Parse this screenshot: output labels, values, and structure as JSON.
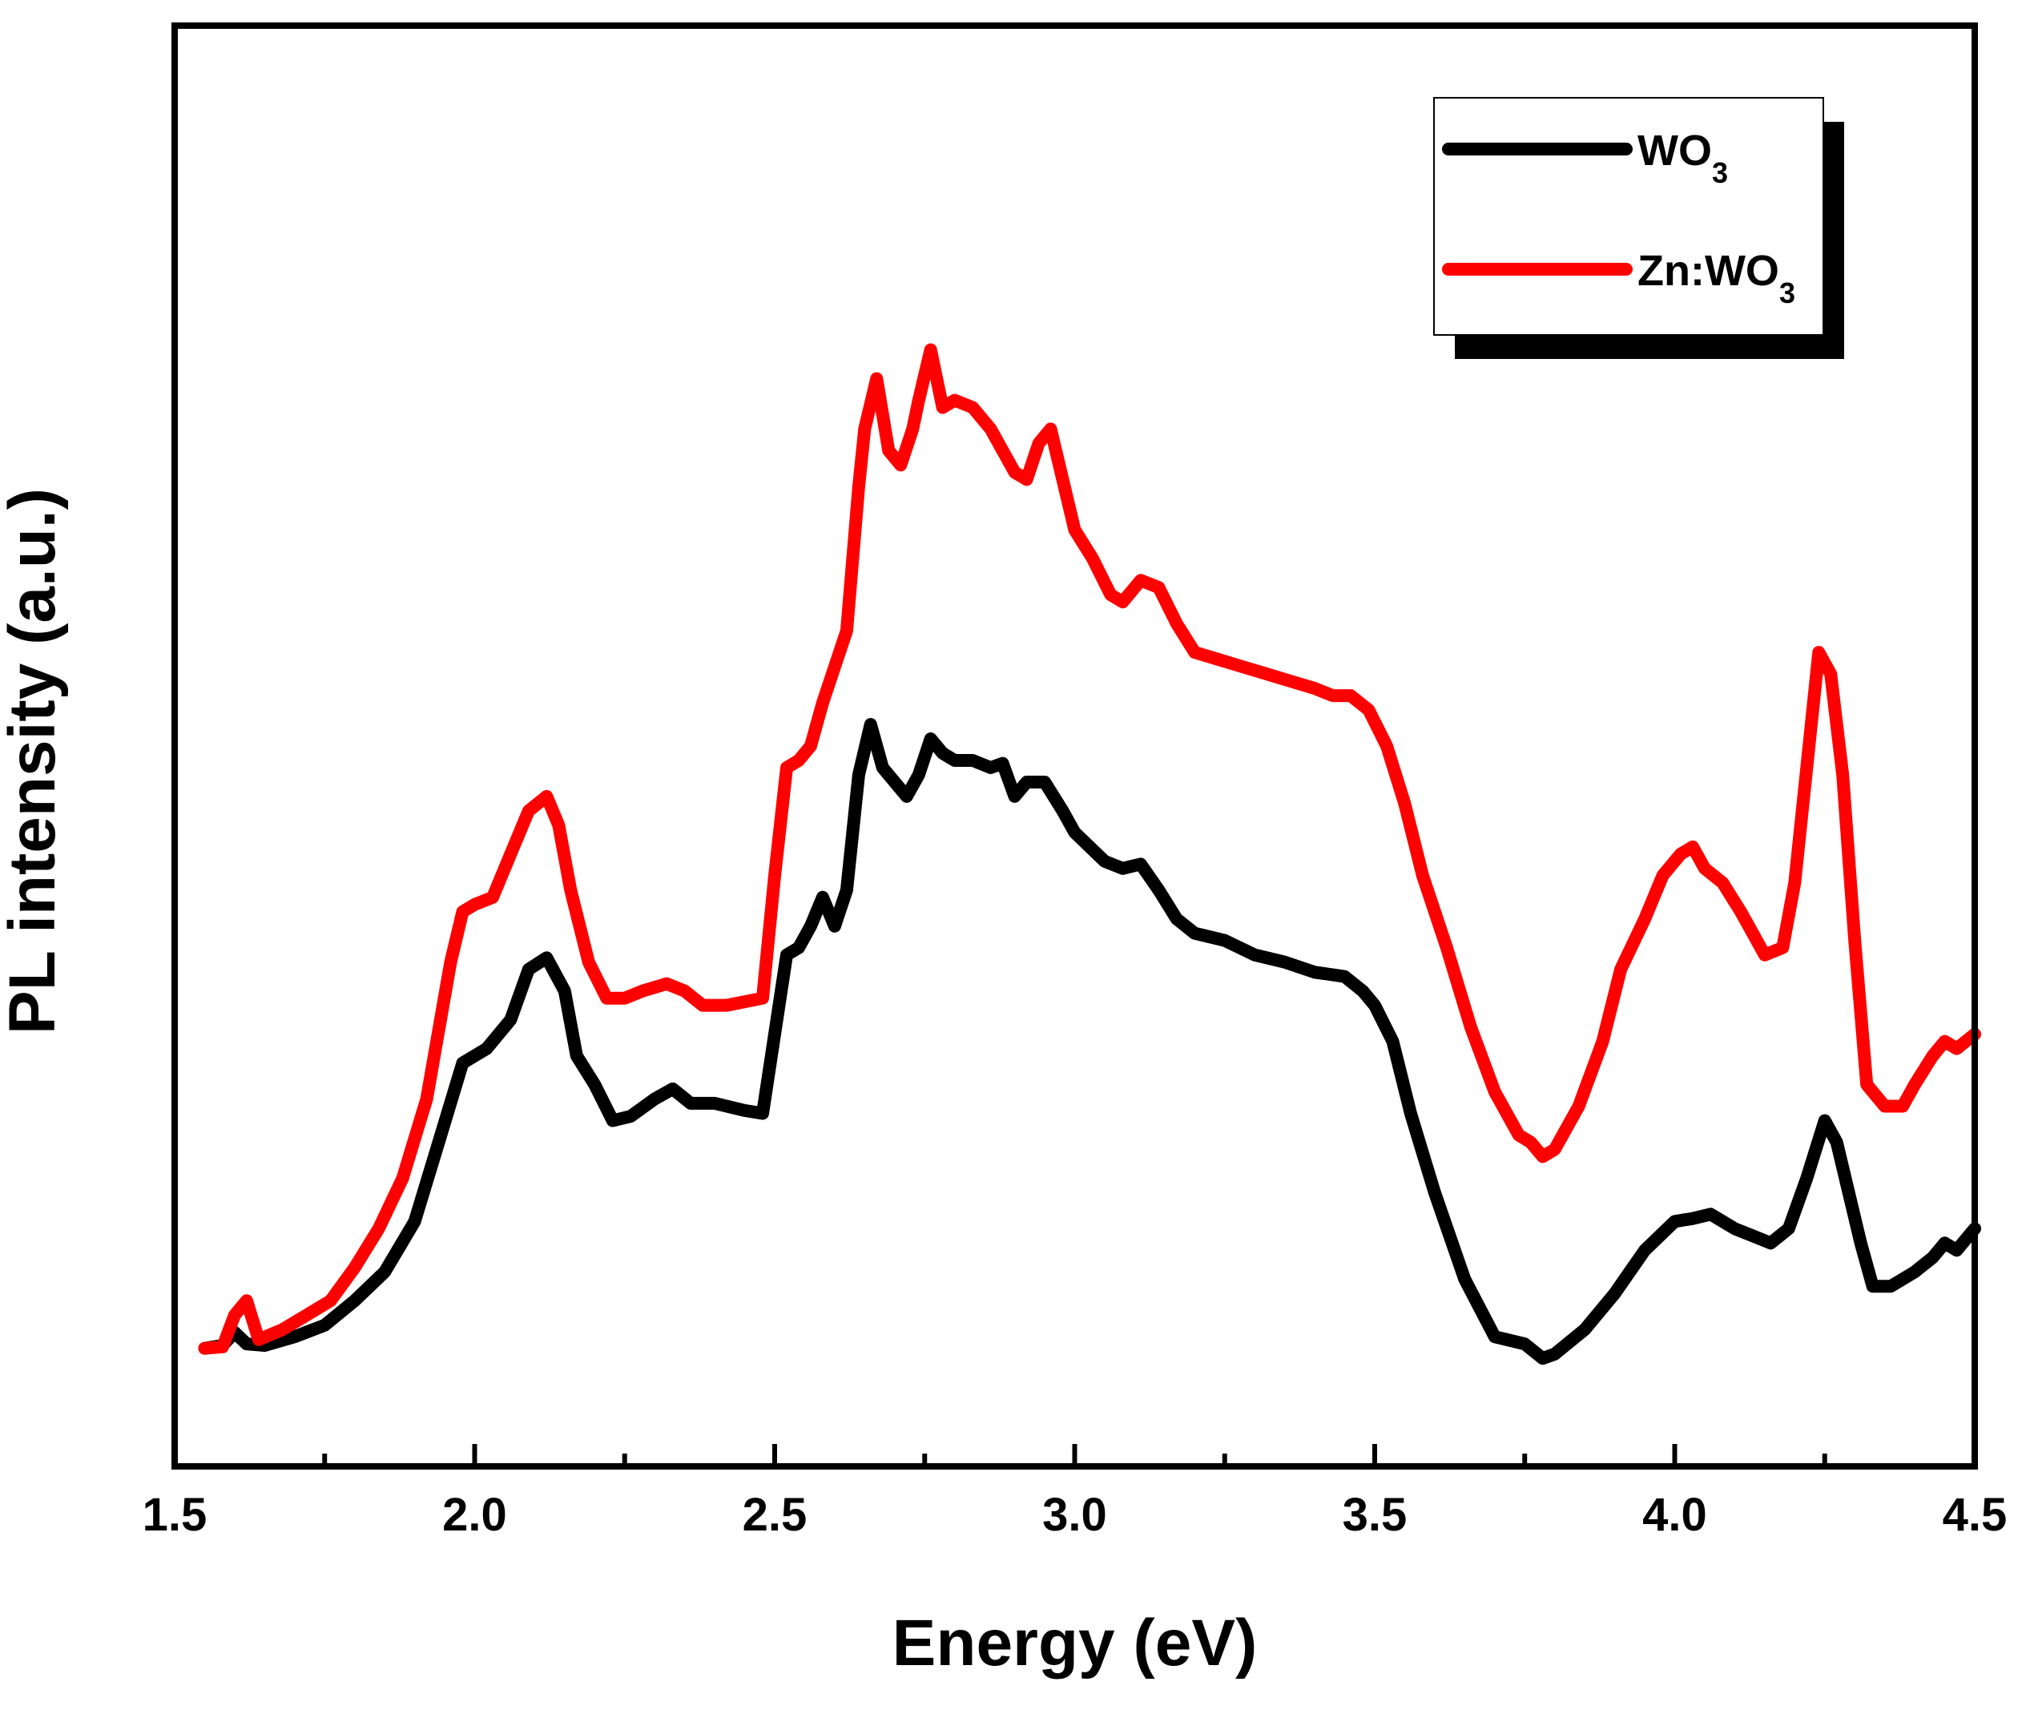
{
  "chart_data": {
    "type": "line",
    "title": "",
    "xlabel": "Energy (eV)",
    "ylabel": "PL intensity (a.u.)",
    "xlim": [
      1.5,
      4.5
    ],
    "ylim": [
      0,
      100
    ],
    "x_ticks": [
      "1.5",
      "2.0",
      "2.5",
      "3.0",
      "3.5",
      "4.0",
      "4.5"
    ],
    "y_ticks_shown": false,
    "legend": {
      "position": "top-right",
      "entries": [
        {
          "name": "WO",
          "sub": "3",
          "color": "#000000"
        },
        {
          "name": "Zn:WO",
          "sub": "3",
          "color": "#ff0000"
        }
      ]
    },
    "series": [
      {
        "name": "WO3",
        "color": "#000000",
        "points": [
          [
            1.55,
            8.2
          ],
          [
            1.58,
            8.4
          ],
          [
            1.6,
            9.3
          ],
          [
            1.62,
            8.5
          ],
          [
            1.65,
            8.4
          ],
          [
            1.7,
            9.0
          ],
          [
            1.75,
            9.8
          ],
          [
            1.8,
            11.5
          ],
          [
            1.85,
            13.5
          ],
          [
            1.9,
            17.0
          ],
          [
            1.94,
            22.5
          ],
          [
            1.98,
            28.0
          ],
          [
            2.02,
            29.0
          ],
          [
            2.06,
            31.0
          ],
          [
            2.09,
            34.5
          ],
          [
            2.12,
            35.3
          ],
          [
            2.15,
            33.0
          ],
          [
            2.17,
            28.5
          ],
          [
            2.2,
            26.5
          ],
          [
            2.23,
            24.0
          ],
          [
            2.26,
            24.3
          ],
          [
            2.3,
            25.5
          ],
          [
            2.33,
            26.2
          ],
          [
            2.36,
            25.2
          ],
          [
            2.4,
            25.2
          ],
          [
            2.45,
            24.7
          ],
          [
            2.48,
            24.5
          ],
          [
            2.5,
            30.0
          ],
          [
            2.52,
            35.5
          ],
          [
            2.54,
            36.0
          ],
          [
            2.56,
            37.5
          ],
          [
            2.58,
            39.5
          ],
          [
            2.6,
            37.5
          ],
          [
            2.62,
            40.0
          ],
          [
            2.64,
            48.0
          ],
          [
            2.66,
            51.5
          ],
          [
            2.68,
            48.5
          ],
          [
            2.7,
            47.5
          ],
          [
            2.72,
            46.5
          ],
          [
            2.74,
            48.0
          ],
          [
            2.76,
            50.5
          ],
          [
            2.78,
            49.5
          ],
          [
            2.8,
            49.0
          ],
          [
            2.83,
            49.0
          ],
          [
            2.86,
            48.5
          ],
          [
            2.88,
            48.8
          ],
          [
            2.9,
            46.5
          ],
          [
            2.92,
            47.5
          ],
          [
            2.95,
            47.5
          ],
          [
            2.98,
            45.5
          ],
          [
            3.0,
            44.0
          ],
          [
            3.05,
            42.0
          ],
          [
            3.08,
            41.5
          ],
          [
            3.11,
            41.8
          ],
          [
            3.14,
            40.0
          ],
          [
            3.17,
            38.0
          ],
          [
            3.2,
            37.0
          ],
          [
            3.25,
            36.5
          ],
          [
            3.3,
            35.5
          ],
          [
            3.35,
            35.0
          ],
          [
            3.4,
            34.3
          ],
          [
            3.45,
            34.0
          ],
          [
            3.48,
            33.0
          ],
          [
            3.5,
            32.0
          ],
          [
            3.53,
            29.5
          ],
          [
            3.56,
            24.5
          ],
          [
            3.6,
            19.0
          ],
          [
            3.65,
            13.0
          ],
          [
            3.7,
            9.0
          ],
          [
            3.75,
            8.5
          ],
          [
            3.78,
            7.5
          ],
          [
            3.8,
            7.8
          ],
          [
            3.85,
            9.5
          ],
          [
            3.9,
            12.0
          ],
          [
            3.95,
            15.0
          ],
          [
            4.0,
            17.0
          ],
          [
            4.03,
            17.2
          ],
          [
            4.06,
            17.5
          ],
          [
            4.1,
            16.5
          ],
          [
            4.13,
            16.0
          ],
          [
            4.16,
            15.5
          ],
          [
            4.19,
            16.5
          ],
          [
            4.22,
            20.0
          ],
          [
            4.25,
            24.0
          ],
          [
            4.27,
            22.5
          ],
          [
            4.29,
            19.0
          ],
          [
            4.31,
            15.5
          ],
          [
            4.33,
            12.5
          ],
          [
            4.36,
            12.5
          ],
          [
            4.4,
            13.5
          ],
          [
            4.43,
            14.5
          ],
          [
            4.45,
            15.5
          ],
          [
            4.47,
            15.0
          ],
          [
            4.5,
            16.5
          ]
        ]
      },
      {
        "name": "Zn:WO3",
        "color": "#ff0000",
        "points": [
          [
            1.55,
            8.2
          ],
          [
            1.58,
            8.3
          ],
          [
            1.6,
            10.5
          ],
          [
            1.62,
            11.5
          ],
          [
            1.64,
            8.8
          ],
          [
            1.68,
            9.5
          ],
          [
            1.72,
            10.5
          ],
          [
            1.76,
            11.5
          ],
          [
            1.8,
            13.8
          ],
          [
            1.84,
            16.5
          ],
          [
            1.88,
            20.0
          ],
          [
            1.92,
            25.5
          ],
          [
            1.96,
            35.0
          ],
          [
            1.98,
            38.5
          ],
          [
            2.0,
            39.0
          ],
          [
            2.03,
            39.5
          ],
          [
            2.06,
            42.5
          ],
          [
            2.09,
            45.5
          ],
          [
            2.12,
            46.5
          ],
          [
            2.14,
            44.5
          ],
          [
            2.16,
            40.0
          ],
          [
            2.19,
            35.0
          ],
          [
            2.22,
            32.5
          ],
          [
            2.25,
            32.5
          ],
          [
            2.28,
            33.0
          ],
          [
            2.32,
            33.5
          ],
          [
            2.35,
            33.0
          ],
          [
            2.38,
            32.0
          ],
          [
            2.42,
            32.0
          ],
          [
            2.48,
            32.5
          ],
          [
            2.5,
            41.0
          ],
          [
            2.52,
            48.5
          ],
          [
            2.54,
            49.0
          ],
          [
            2.56,
            50.0
          ],
          [
            2.58,
            53.0
          ],
          [
            2.6,
            55.5
          ],
          [
            2.62,
            58.0
          ],
          [
            2.64,
            68.0
          ],
          [
            2.65,
            72.0
          ],
          [
            2.67,
            75.5
          ],
          [
            2.69,
            70.5
          ],
          [
            2.71,
            69.5
          ],
          [
            2.73,
            72.0
          ],
          [
            2.74,
            74.0
          ],
          [
            2.76,
            77.5
          ],
          [
            2.78,
            73.5
          ],
          [
            2.8,
            74.0
          ],
          [
            2.83,
            73.5
          ],
          [
            2.86,
            72.0
          ],
          [
            2.88,
            70.5
          ],
          [
            2.9,
            69.0
          ],
          [
            2.92,
            68.5
          ],
          [
            2.94,
            71.0
          ],
          [
            2.96,
            72.0
          ],
          [
            2.98,
            68.5
          ],
          [
            3.0,
            65.0
          ],
          [
            3.03,
            63.0
          ],
          [
            3.06,
            60.5
          ],
          [
            3.08,
            60.0
          ],
          [
            3.11,
            61.5
          ],
          [
            3.14,
            61.0
          ],
          [
            3.17,
            58.5
          ],
          [
            3.2,
            56.5
          ],
          [
            3.24,
            56.0
          ],
          [
            3.28,
            55.5
          ],
          [
            3.32,
            55.0
          ],
          [
            3.36,
            54.5
          ],
          [
            3.4,
            54.0
          ],
          [
            3.43,
            53.5
          ],
          [
            3.46,
            53.5
          ],
          [
            3.49,
            52.5
          ],
          [
            3.52,
            50.0
          ],
          [
            3.55,
            46.0
          ],
          [
            3.58,
            41.0
          ],
          [
            3.62,
            36.0
          ],
          [
            3.66,
            30.5
          ],
          [
            3.7,
            26.0
          ],
          [
            3.74,
            23.0
          ],
          [
            3.76,
            22.5
          ],
          [
            3.78,
            21.5
          ],
          [
            3.8,
            22.0
          ],
          [
            3.84,
            25.0
          ],
          [
            3.88,
            29.5
          ],
          [
            3.91,
            34.5
          ],
          [
            3.95,
            38.0
          ],
          [
            3.98,
            41.0
          ],
          [
            4.01,
            42.5
          ],
          [
            4.03,
            43.0
          ],
          [
            4.05,
            41.5
          ],
          [
            4.08,
            40.5
          ],
          [
            4.11,
            38.5
          ],
          [
            4.13,
            37.0
          ],
          [
            4.15,
            35.5
          ],
          [
            4.18,
            36.0
          ],
          [
            4.2,
            40.5
          ],
          [
            4.22,
            48.5
          ],
          [
            4.24,
            56.5
          ],
          [
            4.26,
            55.0
          ],
          [
            4.28,
            48.0
          ],
          [
            4.3,
            36.5
          ],
          [
            4.32,
            26.5
          ],
          [
            4.35,
            25.0
          ],
          [
            4.38,
            25.0
          ],
          [
            4.4,
            26.5
          ],
          [
            4.43,
            28.5
          ],
          [
            4.45,
            29.5
          ],
          [
            4.47,
            29.0
          ],
          [
            4.5,
            30.0
          ]
        ]
      }
    ]
  }
}
